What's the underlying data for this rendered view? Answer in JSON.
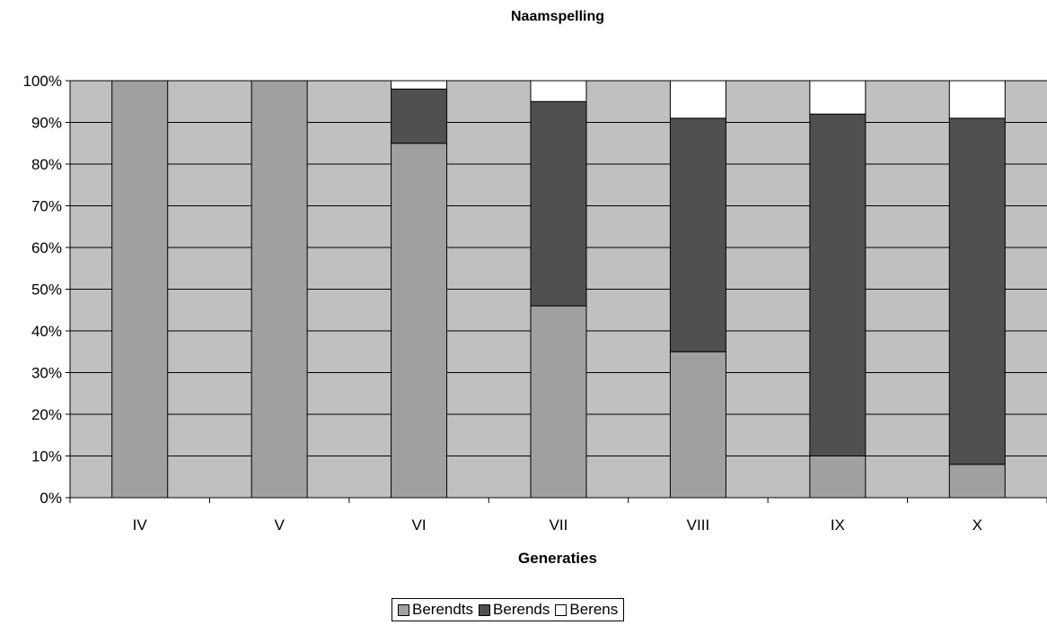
{
  "chart_data": {
    "type": "bar",
    "stacked": true,
    "percent_stacked": true,
    "title": "Naamspelling",
    "xlabel": "Generaties",
    "ylabel": "",
    "categories": [
      "IV",
      "V",
      "VI",
      "VII",
      "VIII",
      "IX",
      "X"
    ],
    "y_ticks": [
      "0%",
      "10%",
      "20%",
      "30%",
      "40%",
      "50%",
      "60%",
      "70%",
      "80%",
      "90%",
      "100%"
    ],
    "ylim": [
      0,
      100
    ],
    "grid": true,
    "legend_position": "bottom",
    "series": [
      {
        "name": "Berendts",
        "color": "#a0a0a0",
        "values": [
          100,
          100,
          85,
          46,
          35,
          10,
          8
        ]
      },
      {
        "name": "Berends",
        "color": "#505050",
        "values": [
          0,
          0,
          13,
          49,
          56,
          82,
          83
        ]
      },
      {
        "name": "Berens",
        "color": "#ffffff",
        "values": [
          0,
          0,
          2,
          5,
          9,
          8,
          9
        ]
      }
    ],
    "plot_background": "#c0c0c0"
  }
}
